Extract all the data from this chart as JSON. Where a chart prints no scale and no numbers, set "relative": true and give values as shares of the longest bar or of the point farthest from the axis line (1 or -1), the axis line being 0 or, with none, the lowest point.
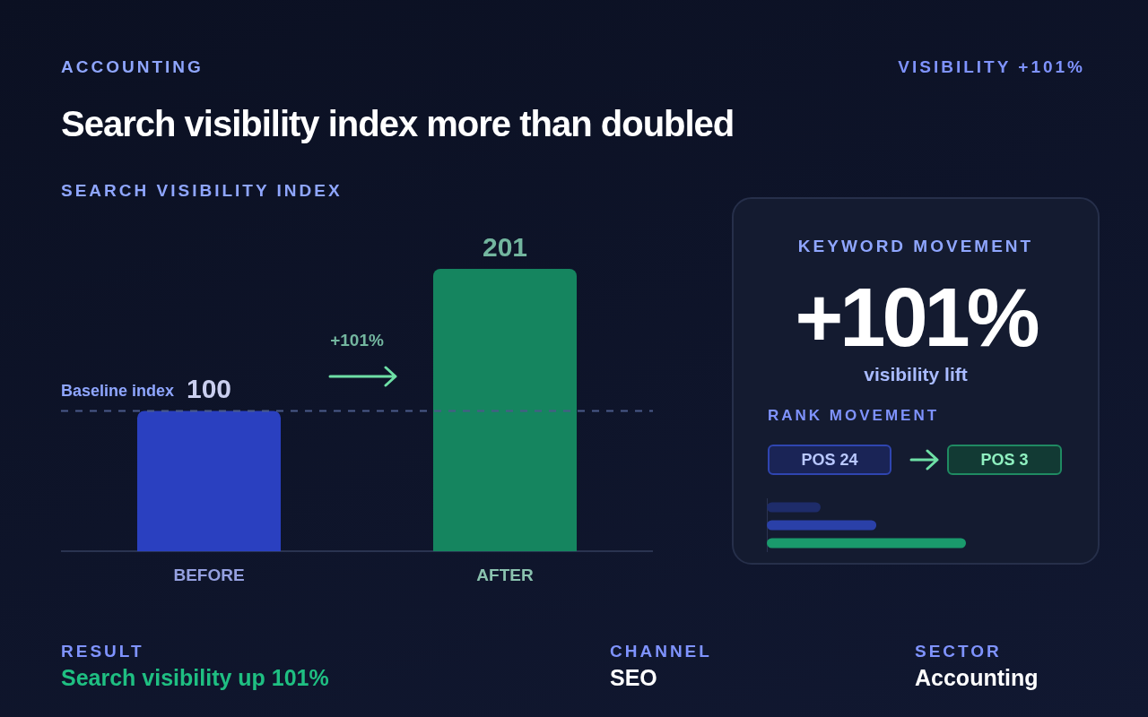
{
  "chart_data": [
    {
      "type": "bar",
      "title": "Search visibility index more than doubled",
      "subtitle": "ACCOUNTING",
      "ylabel": "SEARCH VISIBILITY INDEX",
      "categories": [
        "BEFORE",
        "AFTER"
      ],
      "values": [
        100,
        201
      ],
      "colors": [
        "#2a40c0",
        "#15855f"
      ],
      "value_labels": [
        "100",
        "201"
      ],
      "ref_lines": [
        {
          "axis": "y",
          "value": 100,
          "label": "Baseline index",
          "color": "#4a5a8a",
          "line_style": "dashed"
        }
      ],
      "annotations": [
        "VISIBILITY +101%",
        "+101%",
        "RESULT",
        "Search visibility up 101%",
        "CHANNEL",
        "SEO",
        "SECTOR",
        "Accounting"
      ]
    },
    {
      "type": "bar",
      "title": "KEYWORD MOVEMENT",
      "annotations": [
        "+101%",
        "visibility lift",
        "RANK MOVEMENT",
        "POS 24",
        "POS 3"
      ],
      "orientation": "horizontal",
      "relative": true,
      "categories": [
        null,
        null,
        null
      ],
      "values": [
        0.27,
        0.55,
        1
      ],
      "colors": [
        "#1e2c6a",
        "#2a40a8",
        "#1a9a6c"
      ]
    }
  ]
}
